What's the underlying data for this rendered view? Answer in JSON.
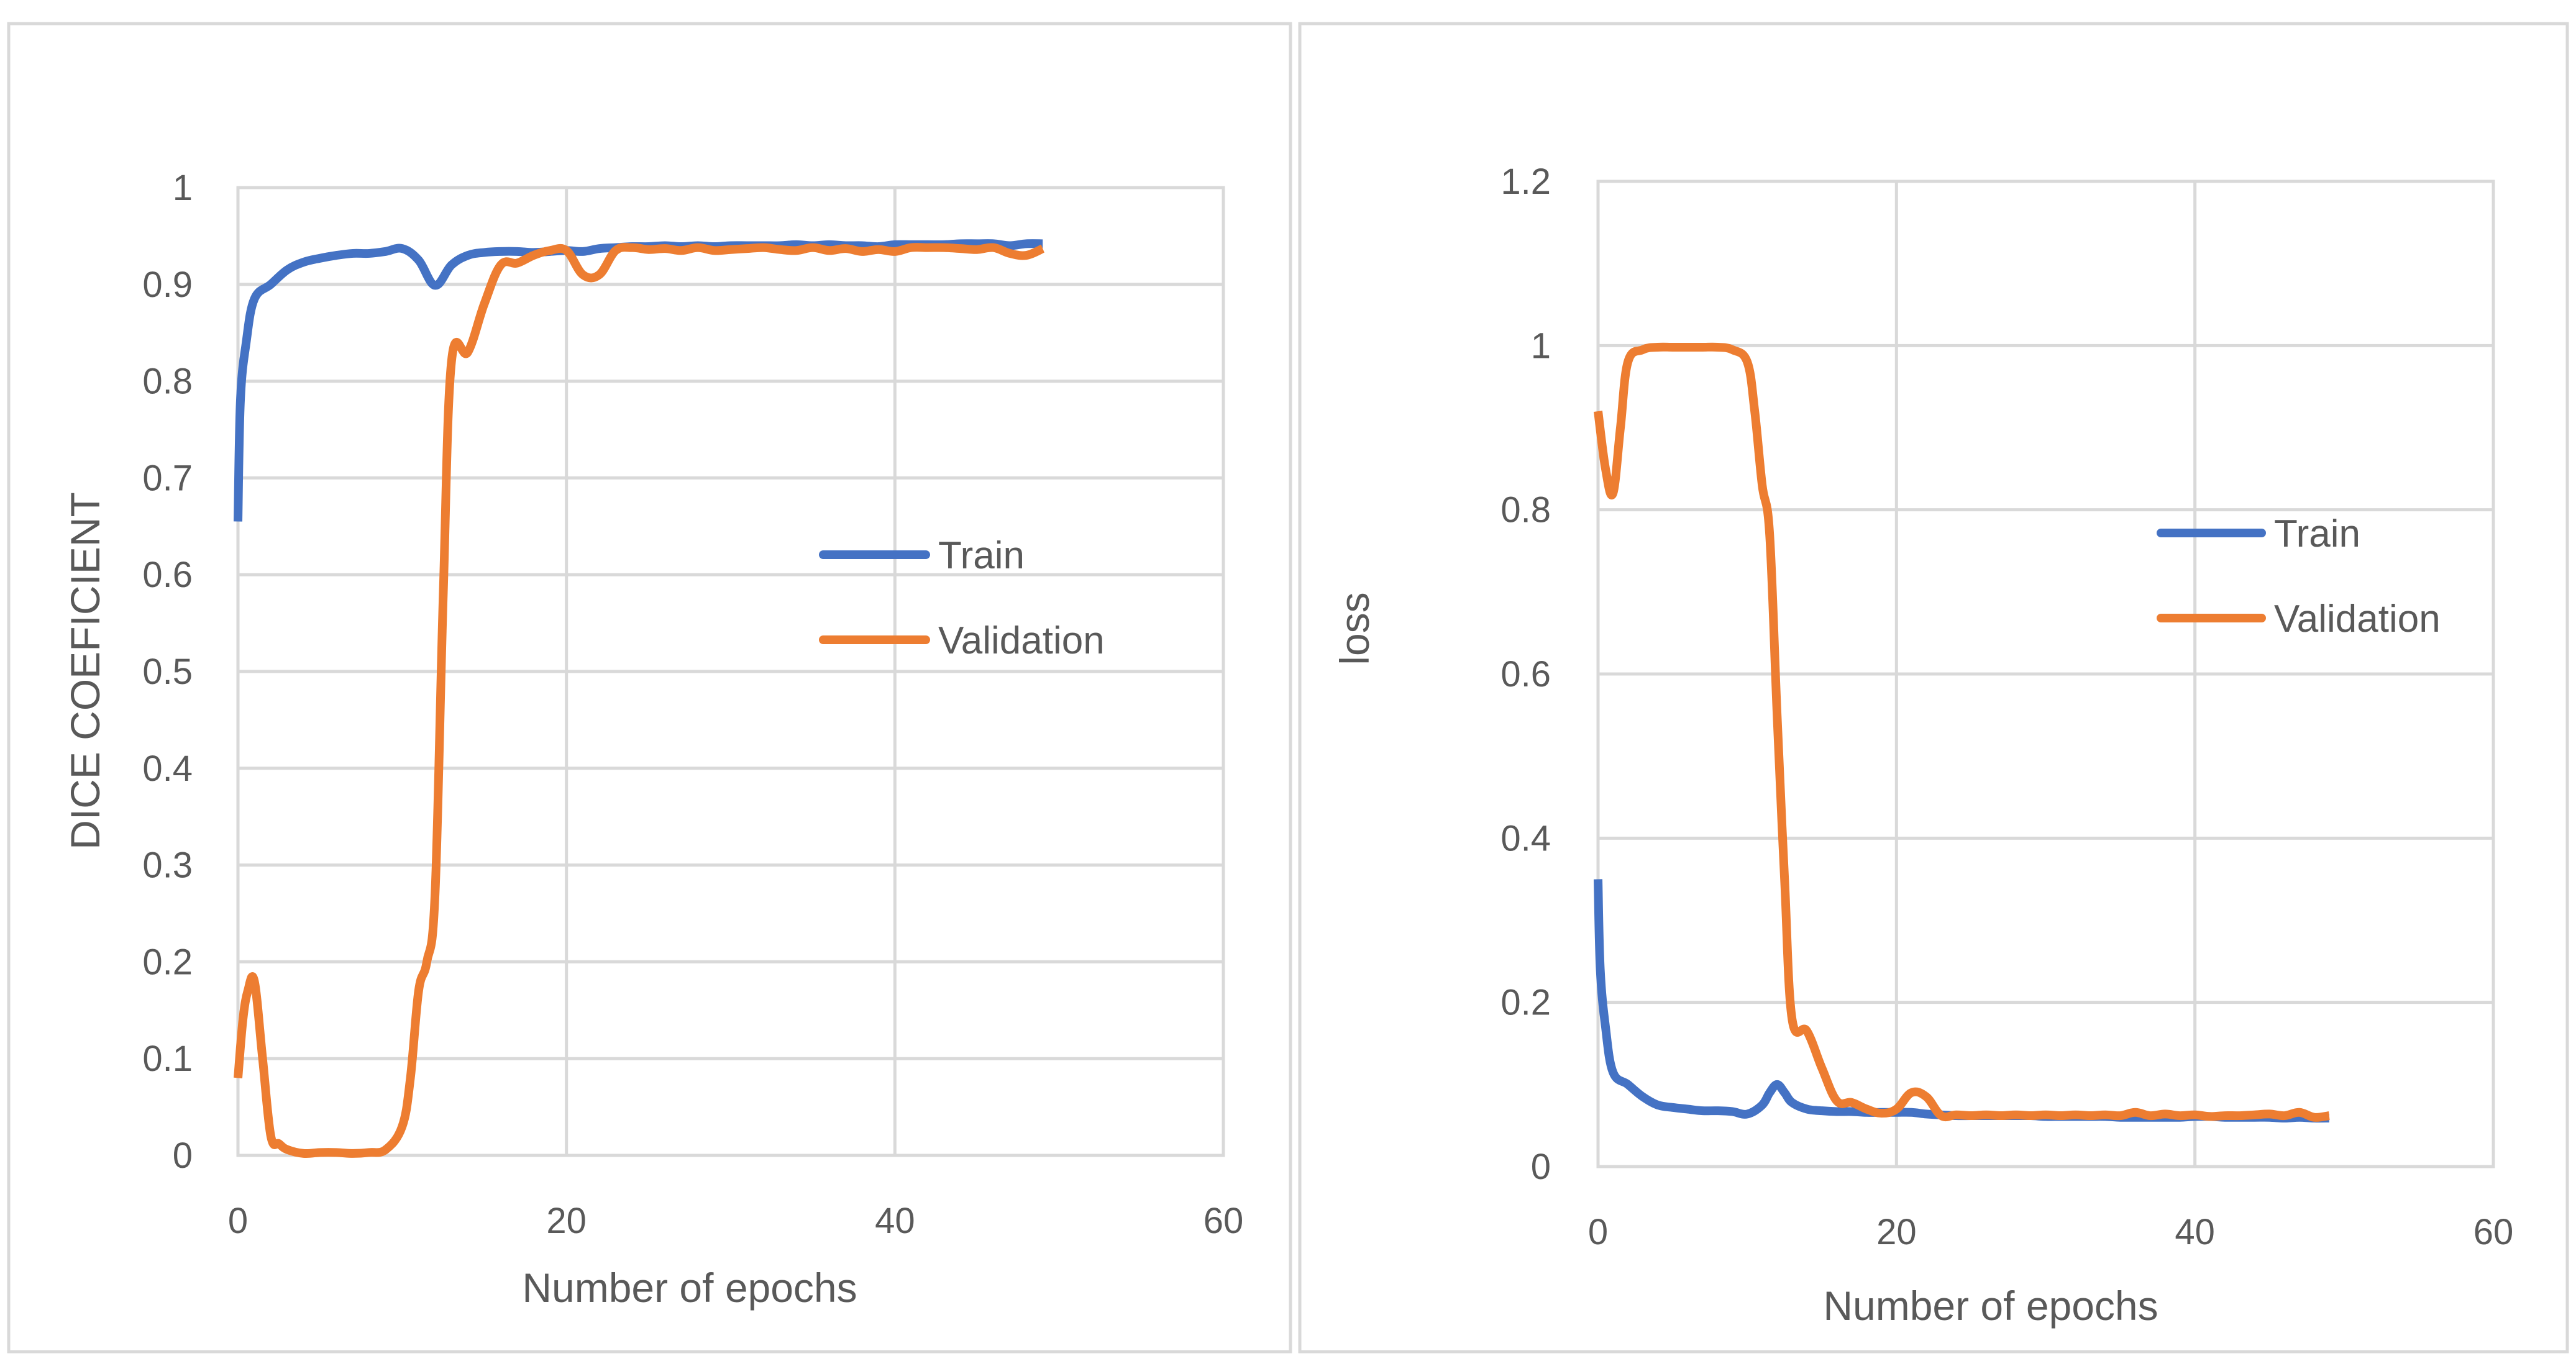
{
  "chart_data": [
    {
      "type": "line",
      "title": "",
      "xlabel": "Number  of epochs",
      "ylabel": "DICE COEFICIENT",
      "xlim": [
        0,
        60
      ],
      "ylim": [
        0,
        1
      ],
      "xticks": [
        0,
        20,
        40,
        60
      ],
      "yticks": [
        0,
        0.1,
        0.2,
        0.3,
        0.4,
        0.5,
        0.6,
        0.7,
        0.8,
        0.9,
        1
      ],
      "xtick_labels": [
        "0",
        "20",
        "40",
        "60"
      ],
      "ytick_labels": [
        "0",
        "0.1",
        "0.2",
        "0.3",
        "0.4",
        "0.5",
        "0.6",
        "0.7",
        "0.8",
        "0.9",
        "1"
      ],
      "grid": true,
      "legend": "center-right",
      "series": [
        {
          "name": "Train",
          "color": "#4472C4",
          "x": [
            0,
            0.15,
            0.5,
            1,
            2,
            3,
            4,
            5,
            6,
            7,
            8,
            9,
            10,
            11,
            12,
            13,
            14,
            15,
            16,
            17,
            18,
            19,
            20,
            21,
            22,
            23,
            24,
            25,
            26,
            27,
            28,
            29,
            30,
            31,
            32,
            33,
            34,
            35,
            36,
            37,
            38,
            39,
            40,
            41,
            42,
            43,
            44,
            45,
            46,
            47,
            48,
            49
          ],
          "values": [
            0.655,
            0.78,
            0.84,
            0.885,
            0.9,
            0.915,
            0.923,
            0.927,
            0.93,
            0.932,
            0.932,
            0.934,
            0.937,
            0.925,
            0.899,
            0.92,
            0.93,
            0.933,
            0.934,
            0.934,
            0.933,
            0.934,
            0.935,
            0.934,
            0.937,
            0.938,
            0.939,
            0.939,
            0.94,
            0.939,
            0.94,
            0.939,
            0.94,
            0.94,
            0.94,
            0.94,
            0.941,
            0.94,
            0.941,
            0.94,
            0.94,
            0.939,
            0.941,
            0.941,
            0.941,
            0.941,
            0.942,
            0.942,
            0.942,
            0.94,
            0.942,
            0.942
          ]
        },
        {
          "name": "Validation",
          "color": "#ED7D31",
          "x": [
            0,
            0.3,
            0.6,
            1,
            1.5,
            2,
            2.5,
            3,
            4,
            5,
            6,
            7,
            8,
            9,
            10,
            10.5,
            11,
            11.5,
            12,
            12.5,
            13,
            14,
            15,
            16,
            17,
            18,
            19,
            20,
            21,
            22,
            23,
            24,
            25,
            26,
            27,
            28,
            29,
            30,
            31,
            32,
            33,
            34,
            35,
            36,
            37,
            38,
            39,
            40,
            41,
            42,
            43,
            44,
            45,
            46,
            47,
            48,
            49
          ],
          "values": [
            0.08,
            0.14,
            0.17,
            0.18,
            0.1,
            0.02,
            0.012,
            0.006,
            0.002,
            0.003,
            0.003,
            0.002,
            0.003,
            0.006,
            0.03,
            0.08,
            0.17,
            0.2,
            0.27,
            0.58,
            0.82,
            0.83,
            0.88,
            0.92,
            0.922,
            0.93,
            0.935,
            0.935,
            0.91,
            0.91,
            0.935,
            0.938,
            0.936,
            0.937,
            0.935,
            0.938,
            0.935,
            0.936,
            0.937,
            0.938,
            0.936,
            0.935,
            0.938,
            0.935,
            0.937,
            0.934,
            0.936,
            0.934,
            0.938,
            0.938,
            0.938,
            0.937,
            0.936,
            0.938,
            0.932,
            0.93,
            0.937
          ]
        }
      ]
    },
    {
      "type": "line",
      "title": "",
      "xlabel": "Number of epochs",
      "ylabel": "loss",
      "xlim": [
        0,
        60
      ],
      "ylim": [
        0,
        1.2
      ],
      "xticks": [
        0,
        20,
        40,
        60
      ],
      "yticks": [
        0,
        0.2,
        0.4,
        0.6,
        0.8,
        1,
        1.2
      ],
      "xtick_labels": [
        "0",
        "20",
        "40",
        "60"
      ],
      "ytick_labels": [
        "0",
        "0.2",
        "0.4",
        "0.6",
        "0.8",
        "1",
        "1.2"
      ],
      "grid": true,
      "legend": "center-right",
      "series": [
        {
          "name": "Train",
          "color": "#4472C4",
          "x": [
            0,
            0.15,
            0.5,
            1,
            2,
            3,
            4,
            5,
            6,
            7,
            8,
            9,
            10,
            11,
            11.5,
            12,
            12.5,
            13,
            14,
            15,
            16,
            17,
            18,
            19,
            20,
            21,
            22,
            23,
            24,
            25,
            26,
            27,
            28,
            29,
            30,
            31,
            32,
            33,
            34,
            35,
            36,
            37,
            38,
            39,
            40,
            41,
            42,
            43,
            44,
            45,
            46,
            47,
            48,
            49
          ],
          "values": [
            0.35,
            0.24,
            0.17,
            0.115,
            0.1,
            0.085,
            0.075,
            0.072,
            0.07,
            0.068,
            0.068,
            0.067,
            0.064,
            0.075,
            0.09,
            0.1,
            0.09,
            0.078,
            0.07,
            0.068,
            0.067,
            0.067,
            0.066,
            0.066,
            0.066,
            0.066,
            0.064,
            0.063,
            0.062,
            0.062,
            0.062,
            0.062,
            0.062,
            0.062,
            0.061,
            0.061,
            0.061,
            0.061,
            0.061,
            0.06,
            0.06,
            0.06,
            0.06,
            0.06,
            0.061,
            0.061,
            0.06,
            0.06,
            0.06,
            0.06,
            0.059,
            0.06,
            0.059,
            0.059
          ]
        },
        {
          "name": "Validation",
          "color": "#ED7D31",
          "x": [
            0,
            0.5,
            1,
            1.5,
            2,
            3,
            4,
            5,
            6,
            7,
            8,
            9,
            10,
            10.5,
            11,
            11.5,
            12,
            12.5,
            13,
            14,
            15,
            16,
            17,
            18,
            19,
            20,
            21,
            22,
            23,
            24,
            25,
            26,
            27,
            28,
            29,
            30,
            31,
            32,
            33,
            34,
            35,
            36,
            37,
            38,
            39,
            40,
            41,
            42,
            43,
            44,
            45,
            46,
            47,
            48,
            49
          ],
          "values": [
            0.92,
            0.85,
            0.82,
            0.9,
            0.98,
            0.995,
            0.998,
            0.998,
            0.998,
            0.998,
            0.998,
            0.995,
            0.98,
            0.92,
            0.83,
            0.77,
            0.55,
            0.35,
            0.18,
            0.165,
            0.12,
            0.08,
            0.078,
            0.07,
            0.065,
            0.07,
            0.09,
            0.085,
            0.062,
            0.063,
            0.062,
            0.063,
            0.062,
            0.063,
            0.062,
            0.063,
            0.062,
            0.063,
            0.062,
            0.063,
            0.062,
            0.066,
            0.062,
            0.064,
            0.062,
            0.063,
            0.061,
            0.062,
            0.062,
            0.063,
            0.064,
            0.062,
            0.066,
            0.06,
            0.062
          ]
        }
      ]
    }
  ]
}
